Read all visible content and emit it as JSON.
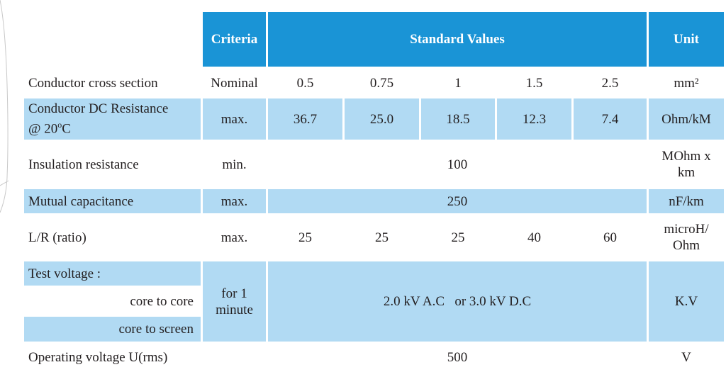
{
  "header": {
    "criteria": "Criteria",
    "standard_values": "Standard Values",
    "unit": "Unit"
  },
  "rows": {
    "cross_section": {
      "label": "Conductor cross section",
      "criteria": "Nominal",
      "values": [
        "0.5",
        "0.75",
        "1",
        "1.5",
        "2.5"
      ],
      "unit": "mm²"
    },
    "dc_resistance": {
      "label_line1": "Conductor DC Resistance",
      "label_line2_pre": "@ 20",
      "label_line2_sup": "o",
      "label_line2_post": "C",
      "criteria": "max.",
      "values": [
        "36.7",
        "25.0",
        "18.5",
        "12.3",
        "7.4"
      ],
      "unit": "Ohm/kM"
    },
    "insulation": {
      "label": "Insulation resistance",
      "criteria": "min.",
      "value": "100",
      "unit_line1": "MOhm x",
      "unit_line2": "km"
    },
    "mutual_capacitance": {
      "label": "Mutual capacitance",
      "criteria": "max.",
      "value": "250",
      "unit": "nF/km"
    },
    "lr_ratio": {
      "label": "L/R (ratio)",
      "criteria": "max.",
      "values": [
        "25",
        "25",
        "25",
        "40",
        "60"
      ],
      "unit_line1": "microH/",
      "unit_line2": "Ohm"
    },
    "test_voltage": {
      "label": "Test voltage :",
      "sub1": "core to core",
      "sub2": "core to screen",
      "criteria_line1": "for 1",
      "criteria_line2": "minute",
      "value_a": "2.0 kV A.C",
      "value_or": "or",
      "value_b": "3.0 kV D.C",
      "unit": "K.V"
    },
    "operating_voltage": {
      "label": "Operating voltage  U(rms)",
      "value": "500",
      "unit": "V"
    }
  },
  "colors": {
    "header_blue": "#1a94d6",
    "light_blue": "#b1daf3",
    "text": "#231f20"
  }
}
